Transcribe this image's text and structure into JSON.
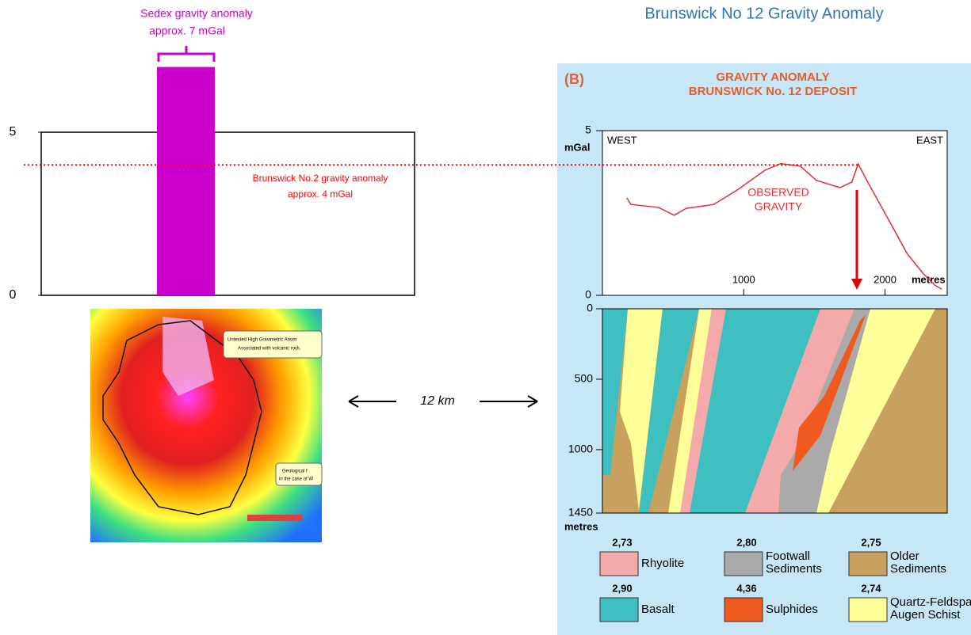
{
  "left_chart": {
    "ylim": [
      0,
      5
    ],
    "yticks": [
      0,
      5
    ],
    "bar": {
      "value": 7,
      "color": "#cc00cc",
      "label": [
        "Sedex gravity anomaly",
        "approx. 7 mGal"
      ]
    },
    "reference": {
      "value": 4,
      "color": "#ff0000",
      "label": [
        "Brunswick No.2 gravity anomaly",
        "approx. 4 mGal"
      ]
    }
  },
  "map": {
    "callouts": [
      "Untested High Gravimetric Anom",
      "Associated with volcanic rock.",
      "Geological f",
      "in the case of W"
    ]
  },
  "distance": "12 km",
  "right": {
    "heading": "Brunswick No 12 Gravity Anomaly",
    "panel_label": "(B)",
    "title": [
      "GRAVITY ANOMALY",
      "BRUNSWICK No. 12 DEPOSIT"
    ],
    "profile": {
      "y_unit": "mGal",
      "x_unit": "metres",
      "west": "WEST",
      "east": "EAST",
      "curve_label": [
        "OBSERVED",
        "GRAVITY"
      ],
      "ylim": [
        0,
        5
      ],
      "yticks": [
        0,
        5
      ],
      "xlim": [
        0,
        2440
      ],
      "xticks": [
        1000,
        2000
      ],
      "color": "#e03030",
      "x": [
        173,
        201,
        397,
        508,
        592,
        788,
        955,
        1151,
        1263,
        1402,
        1514,
        1682,
        1765,
        1810,
        1877,
        2017,
        2156,
        2268,
        2352,
        2402
      ],
      "values": [
        2.96,
        2.76,
        2.67,
        2.43,
        2.64,
        2.76,
        3.2,
        3.8,
        4.0,
        3.92,
        3.49,
        3.27,
        3.44,
        3.99,
        3.44,
        2.36,
        1.27,
        0.67,
        0.31,
        0.19
      ]
    },
    "section": {
      "depth_unit": "metres",
      "depth_lim": [
        0,
        1450
      ],
      "depth_ticks": [
        0,
        500,
        1000,
        1450
      ]
    },
    "legend": [
      {
        "density": "2,73",
        "name": "Rhyolite",
        "color": "#f4a9ab"
      },
      {
        "density": "2,80",
        "name": [
          "Footwall",
          "Sediments"
        ],
        "color": "#aaaaaa"
      },
      {
        "density": "2,75",
        "name": [
          "Older",
          "Sediments"
        ],
        "color": "#c9a15f"
      },
      {
        "density": "2,90",
        "name": "Basalt",
        "color": "#3fbfbf"
      },
      {
        "density": "4,36",
        "name": "Sulphides",
        "color": "#ef5a1e"
      },
      {
        "density": "2,74",
        "name": [
          "Quartz-Feldspar",
          "Augen Schist"
        ],
        "color": "#ffff99"
      }
    ]
  }
}
